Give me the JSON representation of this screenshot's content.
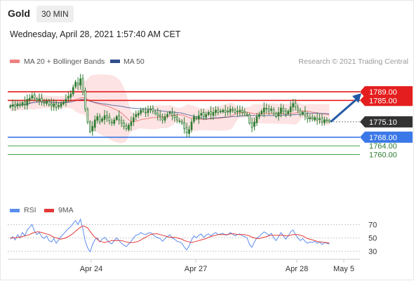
{
  "header": {
    "symbol": "Gold",
    "timeframe": "30 MIN"
  },
  "datetime": "Wednesday, April 28, 2021 1:57:40 AM CET",
  "credit": "Research © 2021 Trading Central",
  "legend": {
    "ma_bb": "MA 20 + Bollinger Bands",
    "ma50": "MA 50",
    "rsi": "RSI",
    "ma9": "9MA"
  },
  "colors": {
    "candle": "#2e7d32",
    "resistance": "#e41e1e",
    "support": "#3b78e7",
    "target": "#43a047",
    "current": "#333333",
    "bb_fill": "#fde3e3",
    "ma20": "#f08080",
    "ma50": "#2f4f8f",
    "arrow": "#245aa5",
    "rsi": "#5b8def",
    "rsi_ma": "#e53935"
  },
  "chart_data": [
    {
      "type": "candlestick",
      "title": "Gold",
      "timeframe": "30 MIN",
      "ylim": [
        1754,
        1800
      ],
      "x_ticks": [
        "Apr 24",
        "Apr 27",
        "Apr 28",
        "May 5"
      ],
      "series": [
        {
          "name": "MA 20 + Bollinger Bands"
        },
        {
          "name": "MA 50"
        }
      ],
      "levels": [
        {
          "label": "1789.00",
          "value": 1789.0,
          "kind": "resistance"
        },
        {
          "label": "1785.00",
          "value": 1785.0,
          "kind": "resistance"
        },
        {
          "label": "1775.10",
          "value": 1775.1,
          "kind": "current"
        },
        {
          "label": "1768.00",
          "value": 1768.0,
          "kind": "support"
        },
        {
          "label": "1764.00",
          "value": 1764.0,
          "kind": "target"
        },
        {
          "label": "1760.00",
          "value": 1760.0,
          "kind": "target"
        }
      ],
      "closes": [
        1782.5,
        1783.0,
        1782.0,
        1783.5,
        1782.8,
        1784.0,
        1783.2,
        1785.5,
        1786.0,
        1787.2,
        1786.0,
        1785.0,
        1785.8,
        1784.5,
        1783.8,
        1784.6,
        1783.0,
        1782.5,
        1783.4,
        1781.8,
        1782.6,
        1783.5,
        1784.2,
        1785.5,
        1786.8,
        1788.0,
        1791.0,
        1793.5,
        1792.2,
        1795.0,
        1789.0,
        1781.0,
        1775.0,
        1770.5,
        1773.0,
        1776.0,
        1777.5,
        1775.0,
        1776.5,
        1778.0,
        1777.0,
        1775.5,
        1774.5,
        1776.0,
        1777.5,
        1776.0,
        1774.5,
        1773.0,
        1772.0,
        1773.5,
        1775.0,
        1777.0,
        1778.5,
        1779.0,
        1780.5,
        1780.0,
        1779.5,
        1780.5,
        1781.0,
        1780.0,
        1779.0,
        1778.0,
        1777.5,
        1776.0,
        1777.5,
        1778.5,
        1779.5,
        1778.0,
        1777.0,
        1776.0,
        1775.5,
        1774.5,
        1772.0,
        1770.0,
        1771.5,
        1775.0,
        1777.5,
        1776.5,
        1778.0,
        1779.0,
        1777.5,
        1778.5,
        1779.5,
        1778.5,
        1779.5,
        1780.5,
        1779.5,
        1780.0,
        1780.5,
        1779.5,
        1780.0,
        1781.0,
        1780.5,
        1779.5,
        1780.0,
        1780.5,
        1779.5,
        1779.0,
        1778.5,
        1774.5,
        1772.5,
        1775.0,
        1777.5,
        1778.5,
        1780.0,
        1781.5,
        1781.0,
        1780.0,
        1781.0,
        1779.0,
        1777.5,
        1779.5,
        1781.5,
        1780.0,
        1778.5,
        1780.0,
        1782.0,
        1783.5,
        1782.0,
        1780.5,
        1778.5,
        1779.5,
        1778.0,
        1776.5,
        1777.0,
        1776.5,
        1777.0,
        1776.0,
        1776.5,
        1775.0,
        1776.0,
        1775.5,
        1775.1
      ]
    },
    {
      "type": "line",
      "title": "RSI",
      "ylim": [
        20,
        80
      ],
      "y_ticks": [
        70,
        50,
        30
      ],
      "series": [
        {
          "name": "RSI",
          "values": [
            48,
            52,
            47,
            55,
            50,
            58,
            53,
            62,
            66,
            70,
            60,
            55,
            58,
            52,
            49,
            53,
            46,
            44,
            49,
            42,
            47,
            52,
            56,
            60,
            64,
            67,
            72,
            76,
            70,
            78,
            64,
            45,
            35,
            29,
            40,
            47,
            50,
            44,
            48,
            51,
            47,
            43,
            41,
            46,
            50,
            46,
            42,
            39,
            37,
            41,
            45,
            50,
            54,
            55,
            58,
            56,
            55,
            57,
            58,
            55,
            52,
            50,
            49,
            45,
            49,
            52,
            55,
            50,
            48,
            45,
            44,
            42,
            36,
            32,
            38,
            47,
            53,
            50,
            54,
            56,
            51,
            54,
            56,
            53,
            56,
            58,
            55,
            56,
            57,
            54,
            55,
            58,
            56,
            53,
            55,
            56,
            53,
            52,
            50,
            40,
            36,
            44,
            50,
            52,
            56,
            59,
            57,
            54,
            57,
            50,
            46,
            52,
            58,
            53,
            48,
            53,
            59,
            62,
            55,
            50,
            46,
            49,
            45,
            42,
            44,
            43,
            45,
            42,
            44,
            40,
            43,
            42,
            41
          ]
        },
        {
          "name": "9MA",
          "values": [
            50,
            50,
            50,
            51,
            51,
            52,
            53,
            54,
            55,
            57,
            58,
            59,
            59,
            58,
            57,
            56,
            55,
            53,
            51,
            50,
            49,
            48,
            49,
            50,
            52,
            54,
            57,
            60,
            63,
            66,
            68,
            67,
            65,
            60,
            55,
            51,
            48,
            45,
            44,
            43,
            44,
            45,
            46,
            46,
            46,
            46,
            46,
            45,
            44,
            43,
            43,
            43,
            44,
            45,
            47,
            49,
            51,
            53,
            55,
            56,
            56,
            56,
            55,
            54,
            53,
            52,
            51,
            51,
            51,
            50,
            49,
            48,
            46,
            45,
            44,
            43,
            44,
            45,
            46,
            47,
            48,
            49,
            51,
            52,
            53,
            54,
            55,
            55,
            55,
            55,
            55,
            56,
            56,
            56,
            55,
            55,
            55,
            55,
            54,
            53,
            51,
            50,
            49,
            49,
            50,
            51,
            52,
            53,
            54,
            54,
            54,
            54,
            54,
            54,
            53,
            53,
            54,
            55,
            55,
            55,
            54,
            53,
            51,
            49,
            48,
            47,
            46,
            45,
            44,
            44,
            43,
            43,
            42
          ]
        }
      ]
    }
  ]
}
